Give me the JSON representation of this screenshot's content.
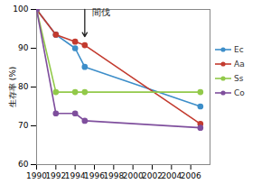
{
  "chart_data": {
    "type": "line",
    "y_label": "生存率 (%)",
    "x": [
      1990,
      1992,
      1994,
      1995,
      2007
    ],
    "series": [
      {
        "name": "Ec",
        "color": "#3d8ec9",
        "values": [
          100,
          93.5,
          90,
          85.2,
          75
        ]
      },
      {
        "name": "Aa",
        "color": "#c33b2f",
        "values": [
          100,
          93.5,
          91.7,
          90.8,
          70.5
        ]
      },
      {
        "name": "Ss",
        "color": "#92c94a",
        "values": [
          100,
          78.7,
          78.7,
          78.7,
          78.7
        ]
      },
      {
        "name": "Co",
        "color": "#7f4f9d",
        "values": [
          100,
          73.2,
          73.2,
          71.3,
          69.5
        ]
      }
    ],
    "xlim": [
      1990,
      2008
    ],
    "xticks": [
      1990,
      1992,
      1994,
      1996,
      1998,
      2000,
      2002,
      2004,
      2006
    ],
    "ylim": [
      60,
      100
    ],
    "yticks": [
      60,
      70,
      80,
      90,
      100
    ],
    "grid": false,
    "legend": "right",
    "marker": "circle",
    "line_style": "solid",
    "annotations": [
      {
        "text": "間伐",
        "x": 1995,
        "y_from": 100,
        "y_to": 93
      }
    ]
  }
}
